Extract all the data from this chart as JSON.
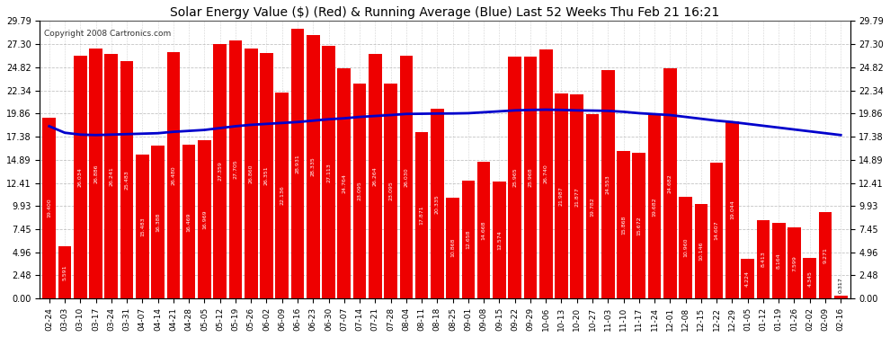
{
  "title": "Solar Energy Value ($) (Red) & Running Average (Blue) Last 52 Weeks Thu Feb 21 16:21",
  "copyright": "Copyright 2008 Cartronics.com",
  "bar_color": "#ee0000",
  "line_color": "#0000cc",
  "background_color": "#ffffff",
  "plot_bg_color": "#ffffff",
  "grid_color": "#aaaaaa",
  "categories": [
    "02-24",
    "03-03",
    "03-10",
    "03-17",
    "03-24",
    "03-31",
    "04-07",
    "04-14",
    "04-21",
    "04-28",
    "05-05",
    "05-12",
    "05-19",
    "05-26",
    "06-02",
    "06-09",
    "06-16",
    "06-23",
    "06-30",
    "07-07",
    "07-14",
    "07-21",
    "07-28",
    "08-04",
    "08-11",
    "08-18",
    "08-25",
    "09-01",
    "09-08",
    "09-15",
    "09-22",
    "09-29",
    "10-06",
    "10-13",
    "10-20",
    "10-27",
    "11-03",
    "11-10",
    "11-17",
    "11-24",
    "12-01",
    "12-08",
    "12-15",
    "12-22",
    "12-29",
    "01-05",
    "01-12",
    "01-19",
    "01-26",
    "02-02",
    "02-09",
    "02-16"
  ],
  "values": [
    19.4,
    5.591,
    26.034,
    26.886,
    26.241,
    25.483,
    15.483,
    16.388,
    26.48,
    16.469,
    16.969,
    27.359,
    27.705,
    26.86,
    26.351,
    22.136,
    28.931,
    28.335,
    27.113,
    24.764,
    23.095,
    26.264,
    23.095,
    26.03,
    17.871,
    20.335,
    10.868,
    12.658,
    14.668,
    12.574,
    25.965,
    25.968,
    26.74,
    21.987,
    21.877,
    19.782,
    24.553,
    15.868,
    15.672,
    19.682,
    24.682,
    10.96,
    10.146,
    14.607,
    19.044,
    4.224,
    8.413,
    8.164,
    7.599,
    4.345,
    9.271,
    0.317
  ],
  "running_avg": [
    18.5,
    17.8,
    17.6,
    17.55,
    17.6,
    17.65,
    17.7,
    17.75,
    17.9,
    18.0,
    18.1,
    18.3,
    18.5,
    18.65,
    18.75,
    18.85,
    18.95,
    19.1,
    19.25,
    19.35,
    19.5,
    19.6,
    19.7,
    19.82,
    19.84,
    19.86,
    19.87,
    19.9,
    20.0,
    20.1,
    20.2,
    20.25,
    20.28,
    20.25,
    20.2,
    20.18,
    20.15,
    20.05,
    19.9,
    19.8,
    19.7,
    19.5,
    19.3,
    19.1,
    18.95,
    18.75,
    18.55,
    18.35,
    18.15,
    17.95,
    17.75,
    17.55
  ],
  "yticks": [
    0.0,
    2.48,
    4.96,
    7.45,
    9.93,
    12.41,
    14.89,
    17.38,
    19.86,
    22.34,
    24.82,
    27.3,
    29.79
  ],
  "ymax": 29.79,
  "ymin": 0.0
}
